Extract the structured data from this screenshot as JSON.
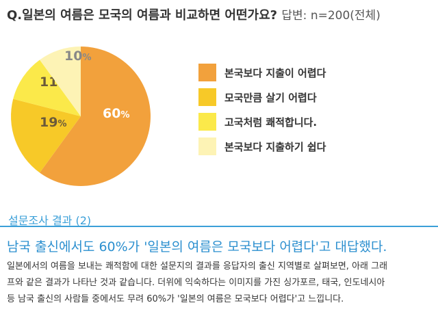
{
  "question": {
    "text": "Q.일본의 여름은 모국의 여름과 비교하면 어떤가요?",
    "answer": "답변: n=200(전체)"
  },
  "chart_data": {
    "type": "pie",
    "slices": [
      {
        "label": "본국보다 지출이 어렵다",
        "value": 60,
        "display": "60",
        "color": "#f2a13c",
        "text_color": "#ffffff"
      },
      {
        "label": "모국만큼 살기 어렵다",
        "value": 19,
        "display": "19",
        "color": "#f7c928",
        "text_color": "#6b5a3a"
      },
      {
        "label": "고국처럼 쾌적합니다.",
        "value": 11,
        "display": "11",
        "color": "#fbe94a",
        "text_color": "#6b5a3a"
      },
      {
        "label": "본국보다 지출하기 쉽다",
        "value": 10,
        "display": "10",
        "color": "#fdf3b5",
        "text_color": "#888888"
      }
    ],
    "unit": "%",
    "legend_position": "right"
  },
  "section": {
    "title": "설문조사 결과 (2)"
  },
  "headline": "남국 출신에서도 60%가 '일본의 여름은 모국보다 어렵다'고 대답했다.",
  "body_lines": [
    "일본에서의 여름을 보내는 쾌적함에 대한 설문지의 결과를 응답자의 출신 지역별로 살펴보면, 아래 그래",
    "프와 같은 결과가 나타난 것과 같습니다. 더위에 익숙하다는 이미지를 가진 싱가포르, 태국, 인도네시아",
    "등 남국 출신의 사람들 중에서도 무려 60%가 '일본의 여름은 모국보다 어렵다'고 느낍니다."
  ]
}
